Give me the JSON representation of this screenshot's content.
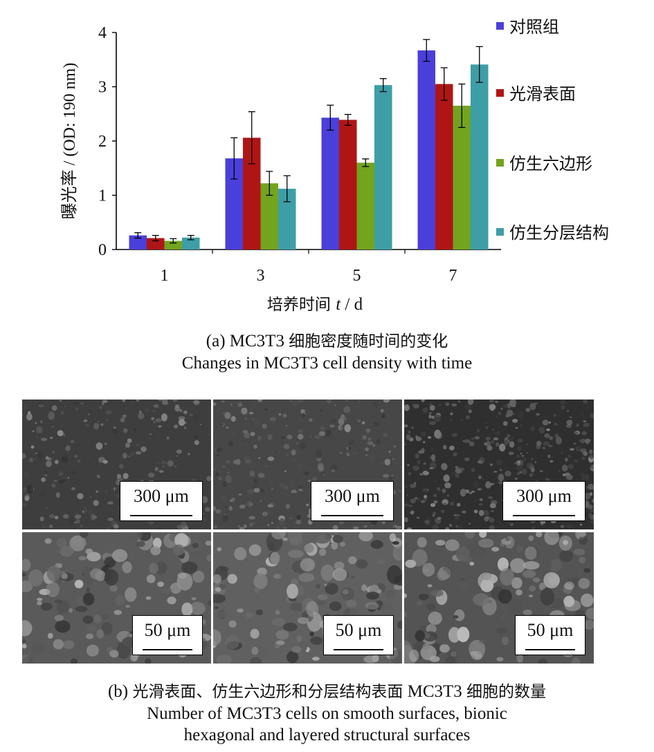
{
  "chart_data": {
    "type": "bar",
    "categories": [
      "1",
      "3",
      "5",
      "7"
    ],
    "series": [
      {
        "name": "对照组",
        "color": "#4b3fdb",
        "values": [
          0.26,
          1.68,
          2.43,
          3.67
        ],
        "errors": [
          0.05,
          0.38,
          0.23,
          0.2
        ]
      },
      {
        "name": "光滑表面",
        "color": "#b01515",
        "values": [
          0.21,
          2.06,
          2.39,
          3.05
        ],
        "errors": [
          0.05,
          0.48,
          0.1,
          0.3
        ]
      },
      {
        "name": "仿生六边形",
        "color": "#72a41e",
        "values": [
          0.16,
          1.22,
          1.6,
          2.65
        ],
        "errors": [
          0.04,
          0.22,
          0.07,
          0.4
        ]
      },
      {
        "name": "仿生分层结构",
        "color": "#3d9ea6",
        "values": [
          0.22,
          1.12,
          3.03,
          3.41
        ],
        "errors": [
          0.04,
          0.24,
          0.12,
          0.33
        ]
      }
    ],
    "yticks": [
      "0",
      "1",
      "2",
      "3",
      "4"
    ],
    "ylim": [
      0,
      4
    ],
    "ylabel": "曝光率 / (OD: 190 nm)",
    "xlabel_prefix": "培养时间 ",
    "xlabel_var": "t",
    "xlabel_suffix": " / d",
    "legend_position": "right",
    "grid": false
  },
  "captions": {
    "a_prefix": "(a) MC3T3 ",
    "a_cjk": "细胞密度随时间的变化",
    "a_en": "Changes in MC3T3 cell density with time",
    "b_prefix": "(b) ",
    "b_cjk1": "光滑表面、仿生六边形和分层结构表面",
    "b_mid": " MC3T3 ",
    "b_cjk2": "细胞的数量",
    "b_en1": "Number of MC3T3 cells on smooth surfaces, bionic",
    "b_en2": "hexagonal and layered structural surfaces"
  },
  "micrographs": {
    "top_scale": "300 μm",
    "bottom_scale": "50 μm"
  }
}
